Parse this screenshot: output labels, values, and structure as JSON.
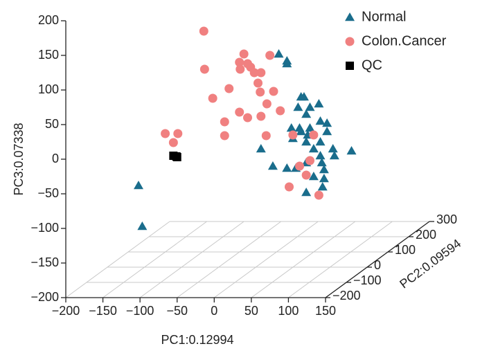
{
  "chart_data": {
    "type": "scatter3d",
    "xlabel": "PC1:0.12994",
    "ylabel": "PC2:0.09594",
    "zlabel": "PC3:0.07338",
    "xlim": [
      -200,
      150
    ],
    "xticks": [
      {
        "value": -200,
        "label": "−200"
      },
      {
        "value": -150,
        "label": "−150"
      },
      {
        "value": -100,
        "label": "−100"
      },
      {
        "value": -50,
        "label": "−50"
      },
      0,
      50,
      100,
      150
    ],
    "ylim": [
      -200,
      300
    ],
    "yticks": [
      {
        "value": -200,
        "label": "−200"
      },
      {
        "value": -100,
        "label": "−100"
      },
      0,
      100,
      200,
      300
    ],
    "zlim": [
      -200,
      200
    ],
    "zticks": [
      {
        "value": -200,
        "label": "−200"
      },
      {
        "value": -150,
        "label": "−150"
      },
      {
        "value": -100,
        "label": "−100"
      },
      {
        "value": -50,
        "label": "−50"
      },
      0,
      50,
      100,
      150,
      200
    ],
    "grid": true,
    "legend": "top-right",
    "series": [
      {
        "name": "Normal",
        "color": "#1a6d8c",
        "marker": "triangle",
        "x": [
          31,
          42,
          42,
          61,
          65,
          57,
          73,
          85,
          68,
          87,
          59,
          73,
          96,
          70,
          96,
          61,
          50,
          68,
          87,
          78,
          104,
          129,
          7,
          87,
          68,
          106,
          89,
          23,
          42,
          54,
          92,
          78,
          92,
          68,
          90,
          -158,
          -153,
          48
        ],
        "y": [
          0,
          0,
          0,
          0,
          0,
          0,
          0,
          0,
          0,
          0,
          0,
          0,
          0,
          0,
          0,
          0,
          0,
          0,
          0,
          0,
          0,
          0,
          0,
          0,
          0,
          0,
          0,
          0,
          0,
          0,
          0,
          0,
          0,
          0,
          0,
          0,
          0,
          0
        ],
        "z": [
          108,
          98,
          94,
          46,
          46,
          31,
          31,
          36,
          21,
          11,
          1,
          1,
          8,
          -9,
          -4,
          -4,
          -14,
          -19,
          -19,
          -29,
          -29,
          -32,
          -29,
          -39,
          -49,
          -39,
          -49,
          -54,
          -57,
          -57,
          -59,
          -69,
          -72,
          -92,
          -84,
          -82,
          -141,
          1
        ]
      },
      {
        "name": "Colon.Cancer",
        "color": "#f08080",
        "marker": "circle",
        "x": [
          -70,
          -16,
          19,
          -22,
          -11,
          -21,
          -7,
          -69,
          -2,
          7,
          3,
          -36,
          6,
          24,
          15,
          -58,
          -22,
          33,
          -11,
          7,
          -42,
          -42,
          14,
          50,
          78,
          -122,
          -105,
          -111,
          73,
          59,
          68,
          45,
          85
        ],
        "y": [
          0,
          0,
          0,
          0,
          0,
          0,
          0,
          0,
          0,
          0,
          0,
          0,
          0,
          0,
          0,
          0,
          0,
          0,
          0,
          0,
          0,
          0,
          0,
          0,
          0,
          0,
          0,
          0,
          0,
          0,
          0,
          0,
          0
        ],
        "z": [
          141,
          108,
          106,
          96,
          94,
          86,
          89,
          86,
          81,
          81,
          66,
          58,
          53,
          54,
          36,
          44,
          24,
          26,
          16,
          18,
          10,
          -10,
          -10,
          -9,
          -9,
          -7,
          -7,
          -20,
          -46,
          -54,
          -67,
          -84,
          -96
        ]
      },
      {
        "name": "QC",
        "color": "#000000",
        "marker": "square",
        "x": [
          -111,
          -107,
          -106
        ],
        "y": [
          0,
          0,
          0
        ],
        "z": [
          -39,
          -40,
          -41
        ]
      }
    ]
  }
}
